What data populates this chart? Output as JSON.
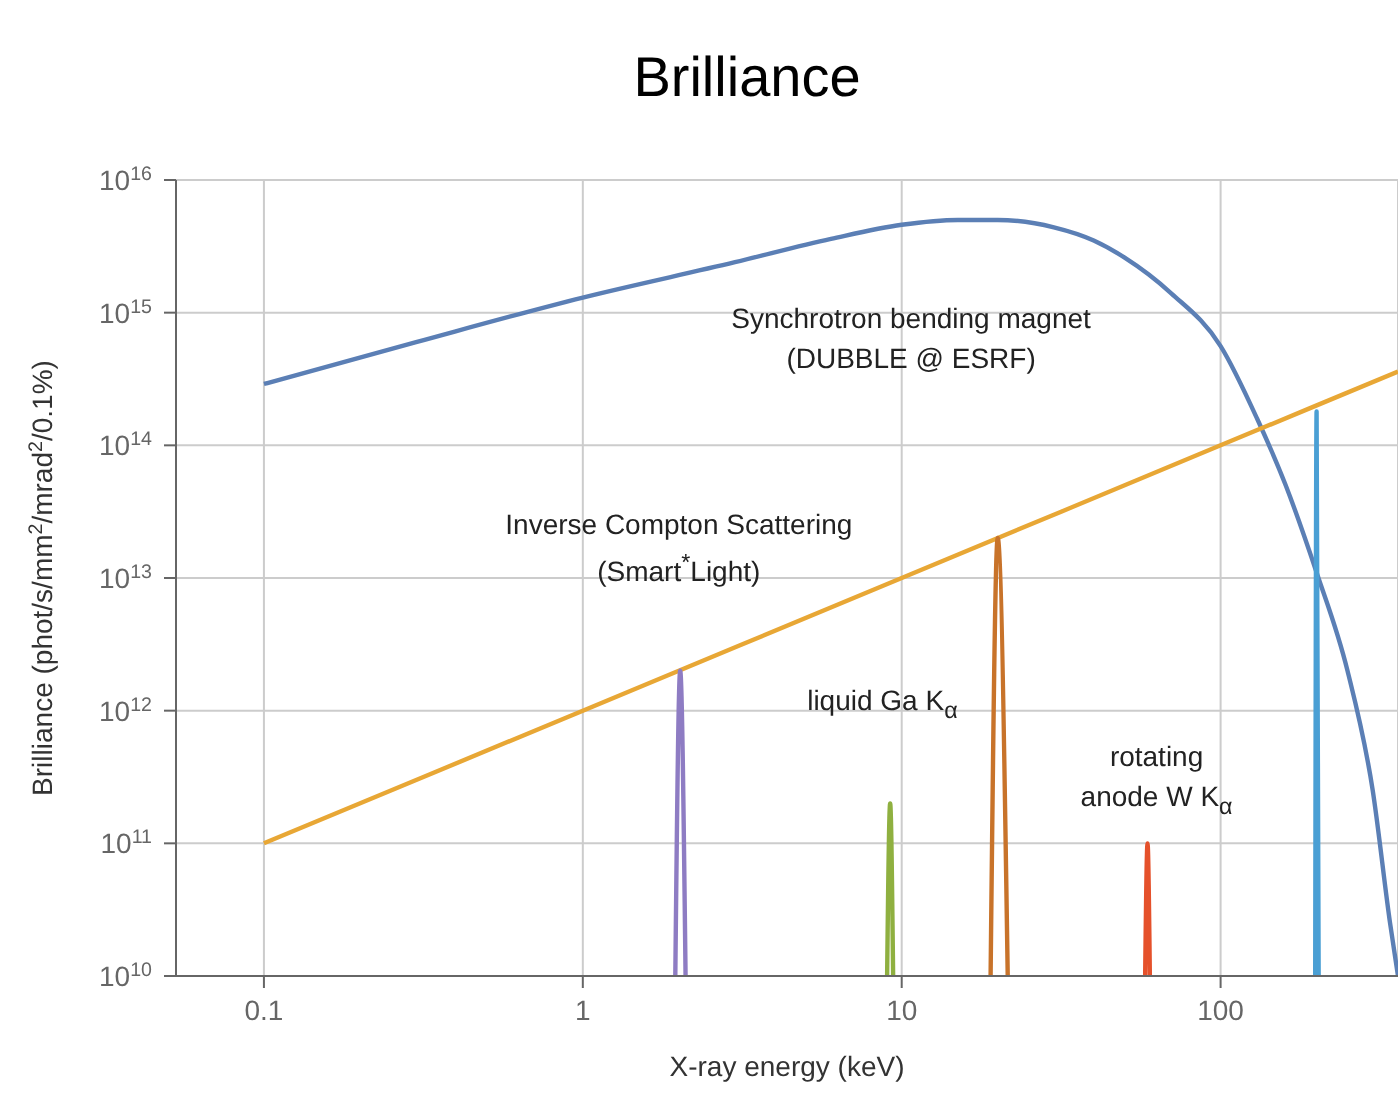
{
  "chart_data": {
    "type": "line",
    "title": "Brilliance",
    "xlabel": "X-ray energy (keV)",
    "ylabel": "Brilliance (phot/s/mm$^{2}$/mrad$^{2}$/0.1%)",
    "log": "xy",
    "grid": true,
    "legend": false,
    "marker": "none",
    "line_style": "solid",
    "xlim": [
      0.053,
      360
    ],
    "xticks": [
      0.1,
      1,
      10,
      100
    ],
    "ylim": [
      10000000000.0,
      1e+16
    ],
    "yticks": [
      {
        "value": 10000000000.0,
        "label": "10$^{10}$"
      },
      {
        "value": 100000000000.0,
        "label": "10$^{11}$"
      },
      {
        "value": 1000000000000.0,
        "label": "10$^{12}$"
      },
      {
        "value": 10000000000000.0,
        "label": "10$^{13}$"
      },
      {
        "value": 100000000000000.0,
        "label": "10$^{14}$"
      },
      {
        "value": 1000000000000000.0,
        "label": "10$^{15}$"
      },
      {
        "value": 1e+16,
        "label": "10$^{16}$"
      }
    ],
    "series": [
      {
        "color": "#5b7fb5",
        "x": [
          0.1,
          0.3,
          1,
          3,
          6,
          10,
          15,
          20,
          30,
          40,
          50,
          70,
          100,
          130,
          160,
          200,
          250,
          300,
          340,
          360
        ],
        "values": [
          290000000000000.0,
          600000000000000.0,
          1300000000000000.0,
          2400000000000000.0,
          3600000000000000.0,
          4600000000000000.0,
          5000000000000000.0,
          5000000000000000.0,
          4400000000000000.0,
          3500000000000000.0,
          2600000000000000.0,
          1400000000000000.0,
          560000000000000.0,
          160000000000000.0,
          50000000000000.0,
          11000000000000.0,
          2000000000000.0,
          250000000000.0,
          25000000000.0,
          10000000000.0
        ]
      },
      {
        "color": "#e8a735",
        "x": [
          0.1,
          1,
          10,
          100,
          360
        ],
        "values": [
          100000000000.0,
          1000000000000.0,
          10000000000000.0,
          100000000000000.0,
          360000000000000.0
        ]
      },
      {
        "color": "#8e7cc3",
        "x": [
          1.95,
          2.02,
          2.1
        ],
        "values": [
          10000000000.0,
          2000000000000.0,
          10000000000.0
        ]
      },
      {
        "color": "#8fb040",
        "x": [
          9.0,
          9.2,
          9.4
        ],
        "values": [
          10000000000.0,
          200000000000.0,
          10000000000.0
        ]
      },
      {
        "color": "#c8732a",
        "x": [
          19,
          20,
          21.5
        ],
        "values": [
          10000000000.0,
          20000000000000.0,
          10000000000.0
        ]
      },
      {
        "color": "#e5512b",
        "x": [
          58,
          59,
          60
        ],
        "values": [
          10000000000.0,
          100000000000.0,
          10000000000.0
        ]
      },
      {
        "color": "#4a9fd4",
        "x": [
          198,
          200,
          203
        ],
        "values": [
          10000000000.0,
          180000000000000.0,
          10000000000.0
        ]
      }
    ],
    "annotations": [
      "Synchrotron bending magnet (DUBBLE @ ESRF)",
      "Inverse Compton Scattering (Smart$^{*}$Light)",
      "liquid Ga K$_{α}$",
      "rotating anode W K$_{α}$"
    ]
  }
}
